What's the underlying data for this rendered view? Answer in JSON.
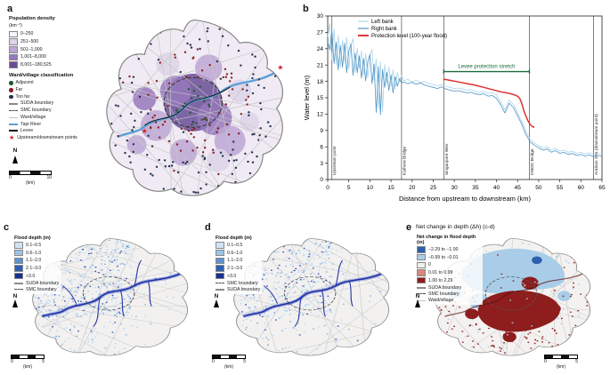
{
  "figure": {
    "panel_labels": {
      "a": "a",
      "b": "b",
      "c": "c",
      "d": "d",
      "e": "e"
    }
  },
  "panel_a": {
    "density_legend": {
      "title": "Population density",
      "unit": "(km⁻²)",
      "items": [
        {
          "label": "0–250",
          "color": "#f6f4f8",
          "type": "fill"
        },
        {
          "label": "251–500",
          "color": "#ddd3e8",
          "type": "fill"
        },
        {
          "label": "501–1,000",
          "color": "#bda6d4",
          "type": "fill"
        },
        {
          "label": "1,001–8,000",
          "color": "#9678bc",
          "type": "fill"
        },
        {
          "label": "8,001–180,525",
          "color": "#6a4f96",
          "type": "fill"
        }
      ]
    },
    "class_legend": {
      "title": "Ward/village classification",
      "items": [
        {
          "label": "Adjacent",
          "color": "#1f5b2d",
          "type": "dot"
        },
        {
          "label": "Far",
          "color": "#8b2020",
          "type": "dot"
        },
        {
          "label": "Too far",
          "color": "#26324f",
          "type": "dot"
        },
        {
          "label": "SUDA boundary",
          "color": "#8a8a8a",
          "type": "line"
        },
        {
          "label": "SMC boundary",
          "color": "#4d4d4d",
          "type": "dash"
        },
        {
          "label": "Ward/village",
          "color": "#c2c2c2",
          "type": "thin"
        },
        {
          "label": "Tapi River",
          "color": "#58a0d8",
          "type": "line"
        },
        {
          "label": "Levee",
          "color": "#111111",
          "type": "line"
        },
        {
          "label": "Upstream/downstream points",
          "color": "#d42020",
          "type": "star"
        }
      ]
    },
    "north": "N",
    "scalebar": {
      "start": "0",
      "end": "10",
      "unit": "(km)"
    }
  },
  "panel_c": {
    "legend_title": "Flood depth (m)",
    "depth_items": [
      {
        "label": "0.1–0.5",
        "color": "#cfe3f5",
        "type": "fill"
      },
      {
        "label": "0.6–1.0",
        "color": "#9cc4e6",
        "type": "fill"
      },
      {
        "label": "1.1–2.0",
        "color": "#5e93cf",
        "type": "fill"
      },
      {
        "label": "2.1–3.0",
        "color": "#2f5fb3",
        "type": "fill"
      },
      {
        "label": ">3.0",
        "color": "#1a2f8f",
        "type": "fill"
      },
      {
        "label": "SUDA boundary",
        "color": "#8a8a8a",
        "type": "line"
      },
      {
        "label": "SMC boundary",
        "color": "#4d4d4d",
        "type": "dash"
      }
    ],
    "north": "N",
    "scalebar": {
      "start": "0",
      "end": "5",
      "unit": "(km)"
    }
  },
  "panel_d": {
    "legend_title": "Flood depth (m)",
    "depth_items": [
      {
        "label": "0.1–0.5",
        "color": "#cfe3f5",
        "type": "fill"
      },
      {
        "label": "0.6–1.0",
        "color": "#9cc4e6",
        "type": "fill"
      },
      {
        "label": "1.1–2.0",
        "color": "#5e93cf",
        "type": "fill"
      },
      {
        "label": "2.1–3.0",
        "color": "#2f5fb3",
        "type": "fill"
      },
      {
        "label": ">3.0",
        "color": "#1a2f8f",
        "type": "fill"
      },
      {
        "label": "SMC boundary",
        "color": "#4d4d4d",
        "type": "dash"
      },
      {
        "label": "SUDA boundary",
        "color": "#8a8a8a",
        "type": "line"
      }
    ],
    "north": "N",
    "scalebar": {
      "start": "0",
      "end": "5",
      "unit": "(km)"
    }
  },
  "panel_e": {
    "title": "Net change in depth (Δh) (c-d)",
    "legend_title": "Net change in flood depth (m)",
    "diff_items": [
      {
        "label": "−2.29 to −1.00",
        "color": "#2c5fad",
        "type": "fill"
      },
      {
        "label": "−0.99 to −0.01",
        "color": "#a9cde8",
        "type": "fill"
      },
      {
        "label": "0",
        "color": "#f2f0ee",
        "type": "fill"
      },
      {
        "label": "0.01 to 0.99",
        "color": "#d98880",
        "type": "fill"
      },
      {
        "label": "1.00 to 2.29",
        "color": "#8e1d1d",
        "type": "fill"
      },
      {
        "label": "SUDA boundary",
        "color": "#8a8a8a",
        "type": "line"
      },
      {
        "label": "SMC boundary",
        "color": "#4d4d4d",
        "type": "dash"
      },
      {
        "label": "Ward/village",
        "color": "#c2c2c2",
        "type": "thin"
      }
    ],
    "north": "N",
    "scalebar": {
      "start": "0",
      "end": "5",
      "unit": "(km)"
    }
  },
  "chart_data": {
    "type": "line",
    "title": "",
    "xlabel": "Distance from upstream to downstream (km)",
    "ylabel": "Water level (m)",
    "xlim": [
      0,
      65
    ],
    "ylim": [
      0,
      30
    ],
    "xticks": [
      0,
      5,
      10,
      15,
      20,
      25,
      30,
      35,
      40,
      45,
      50,
      55,
      60,
      65
    ],
    "yticks": [
      0,
      3,
      6,
      9,
      12,
      15,
      18,
      21,
      24,
      27,
      30
    ],
    "legend": [
      "Left bank",
      "Right bank",
      "Protection level (100-year flood)"
    ],
    "annotations": {
      "levee_stretch": {
        "label": "Levee protection stretch",
        "x0": 27.5,
        "x1": 47.8,
        "y": 19.8,
        "color": "#1a6b3c"
      },
      "vlines": [
        {
          "x": 1,
          "label": "Upstream point"
        },
        {
          "x": 17.5,
          "label": "Kathore Bridge"
        },
        {
          "x": 27.5,
          "label": "Singanpore Weir"
        },
        {
          "x": 47.8,
          "label": "ONGC Bridge"
        },
        {
          "x": 63,
          "label": "Arabian Sea (downstream point)"
        }
      ]
    },
    "series": [
      {
        "name": "Left bank",
        "color": "#a9d4ea",
        "width": 0.8,
        "points": [
          [
            0,
            26.2
          ],
          [
            0.5,
            28.6
          ],
          [
            1,
            22.0
          ],
          [
            1.5,
            27.6
          ],
          [
            2,
            21.0
          ],
          [
            2.5,
            26.4
          ],
          [
            3,
            20.6
          ],
          [
            3.5,
            25.6
          ],
          [
            4,
            21.4
          ],
          [
            4.5,
            26.1
          ],
          [
            5,
            20.2
          ],
          [
            5.5,
            24.6
          ],
          [
            6,
            25.9
          ],
          [
            6.5,
            19.6
          ],
          [
            7,
            24.1
          ],
          [
            7.5,
            20.4
          ],
          [
            8,
            23.6
          ],
          [
            8.5,
            19.1
          ],
          [
            9,
            23.1
          ],
          [
            9.5,
            18.7
          ],
          [
            10,
            22.6
          ],
          [
            10.5,
            23.9
          ],
          [
            11,
            18.2
          ],
          [
            11.5,
            22.1
          ],
          [
            12,
            13.1
          ],
          [
            12.5,
            21.6
          ],
          [
            13,
            12.4
          ],
          [
            13.5,
            21.1
          ],
          [
            14,
            17.6
          ],
          [
            14.5,
            20.6
          ],
          [
            15,
            17.1
          ],
          [
            15.5,
            20.1
          ],
          [
            16,
            16.7
          ],
          [
            16.5,
            19.6
          ],
          [
            17,
            17.9
          ],
          [
            17.5,
            19.1
          ],
          [
            18,
            18.1
          ],
          [
            19,
            18.4
          ],
          [
            20,
            17.9
          ],
          [
            21,
            18.2
          ],
          [
            22,
            17.8
          ],
          [
            23,
            18.0
          ],
          [
            24,
            17.6
          ],
          [
            25,
            17.4
          ],
          [
            26,
            17.2
          ],
          [
            27,
            17.4
          ],
          [
            28,
            17.1
          ],
          [
            29,
            16.9
          ],
          [
            30,
            16.7
          ],
          [
            31,
            16.8
          ],
          [
            32,
            16.6
          ],
          [
            33,
            16.4
          ],
          [
            34,
            16.5
          ],
          [
            35,
            16.2
          ],
          [
            36,
            16.0
          ],
          [
            37,
            16.1
          ],
          [
            38,
            15.8
          ],
          [
            39,
            15.9
          ],
          [
            40,
            15.5
          ],
          [
            41,
            14.3
          ],
          [
            42,
            12.8
          ],
          [
            43,
            14.6
          ],
          [
            44,
            13.8
          ],
          [
            45,
            12.3
          ],
          [
            46,
            10.6
          ],
          [
            47,
            8.8
          ],
          [
            48,
            7.3
          ],
          [
            49,
            6.7
          ],
          [
            50,
            6.2
          ],
          [
            51,
            5.8
          ],
          [
            52,
            6.0
          ],
          [
            53,
            5.4
          ],
          [
            54,
            5.7
          ],
          [
            55,
            5.2
          ],
          [
            56,
            5.4
          ],
          [
            57,
            5.0
          ],
          [
            58,
            5.2
          ],
          [
            59,
            4.8
          ],
          [
            60,
            5.0
          ],
          [
            61,
            4.7
          ],
          [
            62,
            4.9
          ],
          [
            63,
            4.6
          ],
          [
            64,
            4.8
          ],
          [
            65,
            4.7
          ]
        ]
      },
      {
        "name": "Right bank",
        "color": "#4f93c4",
        "width": 0.8,
        "points": [
          [
            0,
            25.3
          ],
          [
            0.5,
            23.8
          ],
          [
            1,
            27.2
          ],
          [
            1.5,
            21.3
          ],
          [
            2,
            25.2
          ],
          [
            2.5,
            20.1
          ],
          [
            3,
            24.6
          ],
          [
            3.5,
            20.6
          ],
          [
            4,
            25.0
          ],
          [
            4.5,
            19.6
          ],
          [
            5,
            23.6
          ],
          [
            5.5,
            24.9
          ],
          [
            6,
            19.1
          ],
          [
            6.5,
            23.2
          ],
          [
            7,
            19.6
          ],
          [
            7.5,
            22.7
          ],
          [
            8,
            18.6
          ],
          [
            8.5,
            22.2
          ],
          [
            9,
            18.1
          ],
          [
            9.5,
            21.7
          ],
          [
            10,
            22.9
          ],
          [
            10.5,
            17.6
          ],
          [
            11,
            21.2
          ],
          [
            11.5,
            12.3
          ],
          [
            12,
            20.7
          ],
          [
            12.5,
            11.9
          ],
          [
            13,
            20.2
          ],
          [
            13.5,
            16.9
          ],
          [
            14,
            19.7
          ],
          [
            14.5,
            16.3
          ],
          [
            15,
            19.2
          ],
          [
            15.5,
            15.9
          ],
          [
            16,
            18.9
          ],
          [
            16.5,
            17.1
          ],
          [
            17,
            18.5
          ],
          [
            17.5,
            17.7
          ],
          [
            18,
            17.9
          ],
          [
            19,
            17.6
          ],
          [
            20,
            17.8
          ],
          [
            21,
            17.5
          ],
          [
            22,
            17.7
          ],
          [
            23,
            17.3
          ],
          [
            24,
            17.1
          ],
          [
            25,
            16.9
          ],
          [
            26,
            16.7
          ],
          [
            27,
            17.0
          ],
          [
            28,
            16.6
          ],
          [
            29,
            16.4
          ],
          [
            30,
            16.2
          ],
          [
            31,
            16.3
          ],
          [
            32,
            16.1
          ],
          [
            33,
            15.9
          ],
          [
            34,
            16.0
          ],
          [
            35,
            15.7
          ],
          [
            36,
            15.6
          ],
          [
            37,
            15.7
          ],
          [
            38,
            15.3
          ],
          [
            39,
            15.4
          ],
          [
            40,
            14.9
          ],
          [
            41,
            13.7
          ],
          [
            42,
            12.2
          ],
          [
            43,
            14.0
          ],
          [
            44,
            13.2
          ],
          [
            45,
            11.7
          ],
          [
            46,
            10.1
          ],
          [
            47,
            8.2
          ],
          [
            48,
            6.9
          ],
          [
            49,
            6.3
          ],
          [
            50,
            5.8
          ],
          [
            51,
            5.4
          ],
          [
            52,
            5.6
          ],
          [
            53,
            5.0
          ],
          [
            54,
            5.3
          ],
          [
            55,
            4.8
          ],
          [
            56,
            5.0
          ],
          [
            57,
            4.6
          ],
          [
            58,
            4.8
          ],
          [
            59,
            4.4
          ],
          [
            60,
            4.6
          ],
          [
            61,
            4.3
          ],
          [
            62,
            4.5
          ],
          [
            63,
            4.2
          ],
          [
            64,
            4.4
          ],
          [
            65,
            4.3
          ]
        ]
      },
      {
        "name": "Protection level (100-year flood)",
        "color": "#e03030",
        "width": 1.5,
        "points": [
          [
            27.5,
            18.4
          ],
          [
            29,
            18.2
          ],
          [
            31,
            17.9
          ],
          [
            33,
            17.6
          ],
          [
            35,
            17.3
          ],
          [
            37,
            16.9
          ],
          [
            39,
            16.5
          ],
          [
            41,
            16.1
          ],
          [
            43,
            15.8
          ],
          [
            44,
            15.6
          ],
          [
            45,
            15.3
          ],
          [
            45.5,
            14.9
          ],
          [
            46,
            13.9
          ],
          [
            46.5,
            12.6
          ],
          [
            47,
            11.6
          ],
          [
            47.5,
            10.7
          ],
          [
            48,
            10.1
          ],
          [
            48.5,
            9.7
          ],
          [
            49,
            9.6
          ]
        ]
      }
    ]
  }
}
